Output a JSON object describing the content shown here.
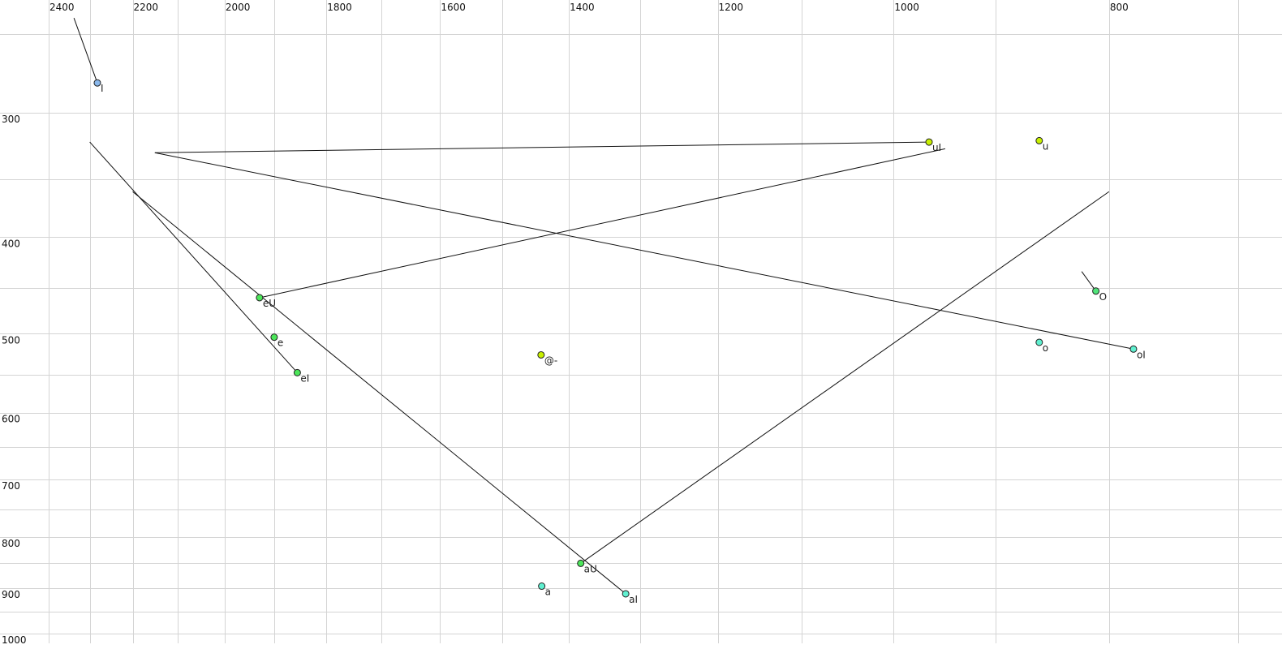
{
  "chart_data": {
    "type": "scatter",
    "title": "",
    "xlabel": "",
    "ylabel": "",
    "x_scale": "log",
    "y_scale": "log",
    "x_reversed": true,
    "y_reversed": true,
    "grid": true,
    "xlim": [
      2524,
      694
    ],
    "ylim": [
      232,
      1015
    ],
    "x_gridlines": [
      2400,
      2300,
      2200,
      2100,
      2000,
      1900,
      1800,
      1700,
      1600,
      1500,
      1400,
      1300,
      1200,
      1100,
      1000,
      900,
      800,
      700
    ],
    "y_gridlines": [
      250,
      300,
      350,
      400,
      450,
      500,
      550,
      600,
      650,
      700,
      750,
      800,
      850,
      900,
      950,
      1000
    ],
    "x_tick_labels": [
      "2400",
      "2200",
      "2000",
      "1800",
      "1600",
      "1400",
      "1200",
      "1000",
      "800"
    ],
    "y_tick_labels": [
      "300",
      "400",
      "500",
      "600",
      "700",
      "800",
      "900",
      "1000"
    ],
    "points": [
      {
        "label": "I",
        "x": 2282,
        "y": 280,
        "color": "#8ab8ec",
        "trail_from": [
          2338,
          241
        ]
      },
      {
        "label": "uI",
        "x": 964,
        "y": 321,
        "color": "#c8f000",
        "trail_from": [
          2150,
          329
        ]
      },
      {
        "label": "u",
        "x": 860,
        "y": 320,
        "color": "#c8f000"
      },
      {
        "label": "O",
        "x": 811,
        "y": 453,
        "color": "#50e47a",
        "label_color": "#7a7a90",
        "trail_color": "#666666",
        "trail_from": [
          823,
          433
        ]
      },
      {
        "label": "o",
        "x": 860,
        "y": 510,
        "color": "#60f0d0"
      },
      {
        "label": "oI",
        "x": 780,
        "y": 518,
        "color": "#60f0d0",
        "trail_from": [
          2150,
          329
        ]
      },
      {
        "label": "eU",
        "x": 1929,
        "y": 460,
        "color": "#4ce65a",
        "trail_from": [
          948,
          326
        ]
      },
      {
        "label": "e",
        "x": 1900,
        "y": 504,
        "color": "#4ce65a"
      },
      {
        "label": "eI",
        "x": 1855,
        "y": 547,
        "color": "#4ce65a",
        "trail_from": [
          2300,
          321
        ]
      },
      {
        "label": "@-",
        "x": 1441,
        "y": 525,
        "color": "#c8f000"
      },
      {
        "label": "aU",
        "x": 1383,
        "y": 850,
        "color": "#4ce65a",
        "trail_from": [
          800,
          360
        ]
      },
      {
        "label": "a",
        "x": 1440,
        "y": 896,
        "color": "#60f0d0"
      },
      {
        "label": "aI",
        "x": 1320,
        "y": 912,
        "color": "#60f0d0",
        "trail_from": [
          2200,
          360
        ]
      }
    ]
  }
}
